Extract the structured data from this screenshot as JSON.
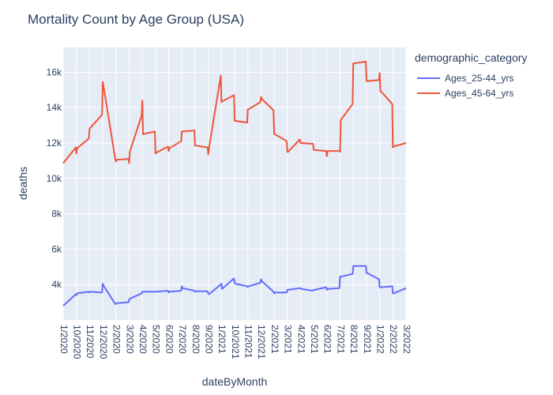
{
  "chart_data": {
    "type": "line",
    "title": "Mortality Count by Age Group (USA)",
    "xlabel": "dateByMonth",
    "ylabel": "deaths",
    "legend_title": "demographic_category",
    "legend_position": "right",
    "grid": true,
    "colors": {
      "plot_bg": "#e5ecf6",
      "grid": "#ffffff"
    },
    "x_ticks": [
      "1/2020",
      "10/2020",
      "11/2020",
      "12/2020",
      "2/2020",
      "3/2020",
      "4/2020",
      "5/2020",
      "6/2020",
      "7/2020",
      "8/2020",
      "9/2020",
      "1/2021",
      "10/2021",
      "11/2021",
      "12/2021",
      "2/2021",
      "3/2021",
      "4/2021",
      "5/2021",
      "6/2021",
      "7/2021",
      "8/2021",
      "9/2021",
      "1/2022",
      "2/2022",
      "3/2022"
    ],
    "y_ticks": [
      {
        "value": 4000,
        "label": "4k"
      },
      {
        "value": 6000,
        "label": "6k"
      },
      {
        "value": 8000,
        "label": "8k"
      },
      {
        "value": 10000,
        "label": "10k"
      },
      {
        "value": 12000,
        "label": "12k"
      },
      {
        "value": 14000,
        "label": "14k"
      },
      {
        "value": 16000,
        "label": "16k"
      }
    ],
    "ylim": [
      2000,
      17400
    ],
    "series": [
      {
        "name": "Ages_25-44_yrs",
        "color": "#636efa",
        "values": [
          [
            0.0,
            2800
          ],
          [
            0.95,
            3450
          ],
          [
            1.0,
            3400
          ],
          [
            1.05,
            3500
          ],
          [
            1.95,
            3600
          ],
          [
            2.0,
            3550
          ],
          [
            2.05,
            3600
          ],
          [
            2.95,
            3550
          ],
          [
            3.0,
            4050
          ],
          [
            3.05,
            3950
          ],
          [
            3.95,
            2900
          ],
          [
            4.0,
            2900
          ],
          [
            4.05,
            2950
          ],
          [
            4.95,
            3000
          ],
          [
            5.0,
            3150
          ],
          [
            5.05,
            3200
          ],
          [
            5.95,
            3500
          ],
          [
            6.0,
            3600
          ],
          [
            6.05,
            3600
          ],
          [
            6.95,
            3600
          ],
          [
            7.0,
            3600
          ],
          [
            7.05,
            3600
          ],
          [
            7.95,
            3650
          ],
          [
            8.0,
            3550
          ],
          [
            8.05,
            3600
          ],
          [
            8.95,
            3650
          ],
          [
            9.0,
            3900
          ],
          [
            9.05,
            3800
          ],
          [
            9.95,
            3650
          ],
          [
            10.0,
            3600
          ],
          [
            10.05,
            3620
          ],
          [
            10.95,
            3620
          ],
          [
            11.0,
            3500
          ],
          [
            11.05,
            3450
          ],
          [
            11.95,
            4000
          ],
          [
            12.0,
            4050
          ],
          [
            12.05,
            3750
          ],
          [
            12.95,
            4350
          ],
          [
            13.0,
            4100
          ],
          [
            13.05,
            4050
          ],
          [
            13.95,
            3900
          ],
          [
            14.0,
            3850
          ],
          [
            14.05,
            3900
          ],
          [
            14.95,
            4100
          ],
          [
            15.0,
            4300
          ],
          [
            15.05,
            4200
          ],
          [
            15.95,
            3600
          ],
          [
            16.0,
            3500
          ],
          [
            16.05,
            3550
          ],
          [
            16.95,
            3550
          ],
          [
            17.0,
            3700
          ],
          [
            17.05,
            3700
          ],
          [
            17.95,
            3800
          ],
          [
            18.0,
            3800
          ],
          [
            18.05,
            3750
          ],
          [
            18.95,
            3650
          ],
          [
            19.0,
            3700
          ],
          [
            19.05,
            3700
          ],
          [
            19.95,
            3850
          ],
          [
            20.0,
            3700
          ],
          [
            20.05,
            3750
          ],
          [
            20.95,
            3800
          ],
          [
            21.0,
            4450
          ],
          [
            21.05,
            4450
          ],
          [
            21.95,
            4600
          ],
          [
            22.0,
            5050
          ],
          [
            22.05,
            5050
          ],
          [
            22.95,
            5050
          ],
          [
            23.0,
            4650
          ],
          [
            23.05,
            4650
          ],
          [
            23.95,
            4300
          ],
          [
            24.0,
            3850
          ],
          [
            24.05,
            3850
          ],
          [
            24.95,
            3900
          ],
          [
            25.0,
            3500
          ],
          [
            25.05,
            3500
          ],
          [
            26.0,
            3800
          ]
        ]
      },
      {
        "name": "Ages_45-64_yrs",
        "color": "#ef553b",
        "values": [
          [
            0.0,
            10850
          ],
          [
            0.95,
            11750
          ],
          [
            1.0,
            11400
          ],
          [
            1.05,
            11700
          ],
          [
            1.95,
            12250
          ],
          [
            2.0,
            12800
          ],
          [
            2.05,
            12850
          ],
          [
            2.95,
            13600
          ],
          [
            3.0,
            15450
          ],
          [
            3.05,
            15250
          ],
          [
            3.95,
            11100
          ],
          [
            4.0,
            10950
          ],
          [
            4.05,
            11050
          ],
          [
            4.95,
            11100
          ],
          [
            5.0,
            10850
          ],
          [
            5.05,
            11500
          ],
          [
            5.95,
            13550
          ],
          [
            6.0,
            14400
          ],
          [
            6.05,
            12500
          ],
          [
            6.95,
            12650
          ],
          [
            7.0,
            11400
          ],
          [
            7.05,
            11450
          ],
          [
            7.95,
            11800
          ],
          [
            8.0,
            11550
          ],
          [
            8.05,
            11700
          ],
          [
            8.95,
            12100
          ],
          [
            9.0,
            12650
          ],
          [
            9.05,
            12650
          ],
          [
            9.95,
            12700
          ],
          [
            10.0,
            11850
          ],
          [
            10.05,
            11850
          ],
          [
            10.95,
            11750
          ],
          [
            11.0,
            11350
          ],
          [
            11.05,
            11700
          ],
          [
            11.95,
            15800
          ],
          [
            12.0,
            14300
          ],
          [
            12.05,
            14350
          ],
          [
            12.95,
            14700
          ],
          [
            13.0,
            13250
          ],
          [
            13.05,
            13250
          ],
          [
            13.95,
            13150
          ],
          [
            14.0,
            13900
          ],
          [
            14.05,
            13900
          ],
          [
            14.95,
            14300
          ],
          [
            15.0,
            14600
          ],
          [
            15.05,
            14500
          ],
          [
            15.95,
            13850
          ],
          [
            16.0,
            12500
          ],
          [
            16.05,
            12500
          ],
          [
            16.95,
            12100
          ],
          [
            17.0,
            11500
          ],
          [
            17.05,
            11500
          ],
          [
            17.95,
            12200
          ],
          [
            18.0,
            12000
          ],
          [
            18.05,
            12000
          ],
          [
            18.95,
            11950
          ],
          [
            19.0,
            11600
          ],
          [
            19.05,
            11600
          ],
          [
            19.95,
            11550
          ],
          [
            20.0,
            11250
          ],
          [
            20.05,
            11550
          ],
          [
            20.95,
            11550
          ],
          [
            21.0,
            11500
          ],
          [
            21.05,
            13300
          ],
          [
            21.95,
            14200
          ],
          [
            22.0,
            16500
          ],
          [
            22.05,
            16500
          ],
          [
            22.95,
            16600
          ],
          [
            23.0,
            15500
          ],
          [
            23.05,
            15500
          ],
          [
            23.95,
            15550
          ],
          [
            24.0,
            15950
          ],
          [
            24.05,
            14950
          ],
          [
            24.95,
            14200
          ],
          [
            25.0,
            11750
          ],
          [
            25.05,
            11800
          ],
          [
            26.0,
            12000
          ]
        ]
      }
    ]
  }
}
